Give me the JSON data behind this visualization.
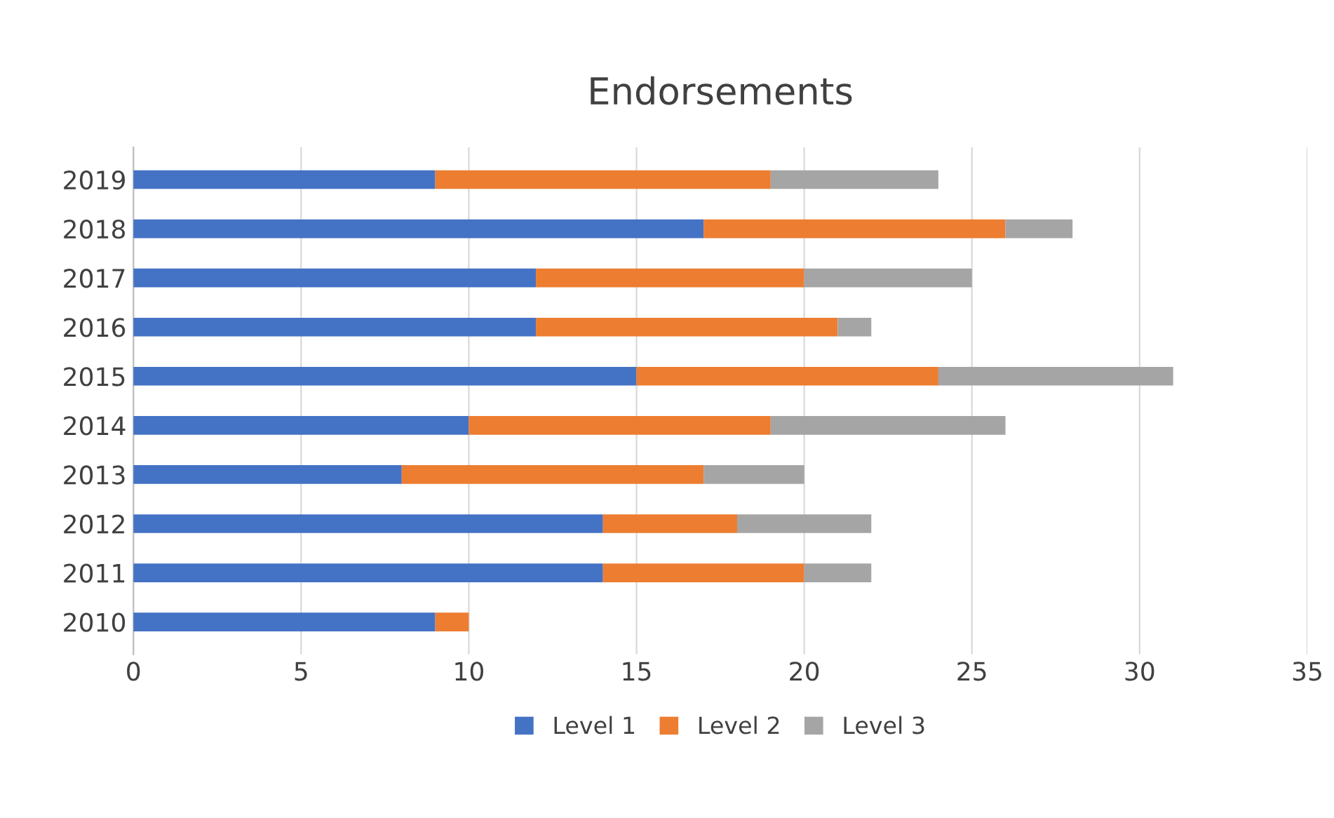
{
  "chart_data": {
    "type": "bar",
    "title": "Endorsements",
    "orientation": "horizontal",
    "stacked": true,
    "categories": [
      "2019",
      "2018",
      "2017",
      "2016",
      "2015",
      "2014",
      "2013",
      "2012",
      "2011",
      "2010"
    ],
    "series": [
      {
        "name": "Level 1",
        "color": "#4472c4",
        "values": [
          9,
          17,
          12,
          12,
          15,
          10,
          8,
          14,
          14,
          9
        ]
      },
      {
        "name": "Level 2",
        "color": "#ed7d31",
        "values": [
          10,
          9,
          8,
          9,
          9,
          9,
          9,
          4,
          6,
          1
        ]
      },
      {
        "name": "Level 3",
        "color": "#a5a5a5",
        "values": [
          5,
          2,
          5,
          1,
          7,
          7,
          3,
          4,
          2,
          0
        ]
      }
    ],
    "xlim": [
      0,
      35
    ],
    "xticks": [
      0,
      5,
      10,
      15,
      20,
      25,
      30,
      35
    ],
    "grid": "x",
    "legend": "bottom"
  }
}
